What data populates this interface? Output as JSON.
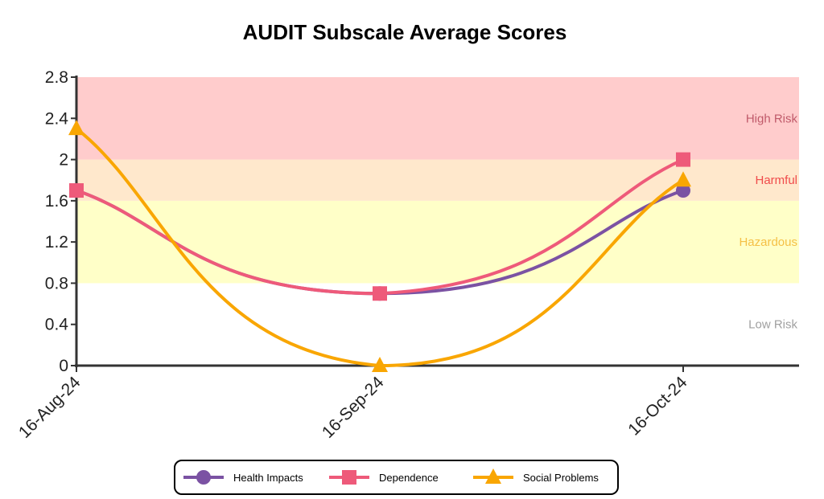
{
  "chart_data": {
    "type": "line",
    "title": "AUDIT Subscale Average Scores",
    "xlabel": "",
    "ylabel": "",
    "categories": [
      "16-Aug-24",
      "16-Sep-24",
      "16-Oct-24"
    ],
    "ylim": [
      0,
      2.8
    ],
    "yticks": [
      "0",
      "0.4",
      "0.8",
      "1.2",
      "1.6",
      "2",
      "2.4",
      "2.8"
    ],
    "grid": false,
    "legend_position": "bottom",
    "bands": [
      {
        "label": "Low Risk",
        "from": 0,
        "to": 0.8,
        "color": "#ffffff",
        "label_color": "#a0a0a0"
      },
      {
        "label": "Hazardous",
        "from": 0.8,
        "to": 1.6,
        "color": "#ffffc8",
        "label_color": "#f5c046"
      },
      {
        "label": "Harmful",
        "from": 1.6,
        "to": 2.0,
        "color": "#ffe8cc",
        "label_color": "#f04b4b"
      },
      {
        "label": "High Risk",
        "from": 2.0,
        "to": 2.8,
        "color": "#ffcccc",
        "label_color": "#c05a6a"
      }
    ],
    "series": [
      {
        "name": "Health Impacts",
        "values": [
          1.7,
          0.7,
          1.7
        ],
        "color": "#7b52a3",
        "marker": "circle"
      },
      {
        "name": "Dependence",
        "values": [
          1.7,
          0.7,
          2.0
        ],
        "color": "#ee5a7a",
        "marker": "square"
      },
      {
        "name": "Social Problems",
        "values": [
          2.3,
          0.0,
          1.8
        ],
        "color": "#f9a602",
        "marker": "triangle"
      }
    ]
  }
}
